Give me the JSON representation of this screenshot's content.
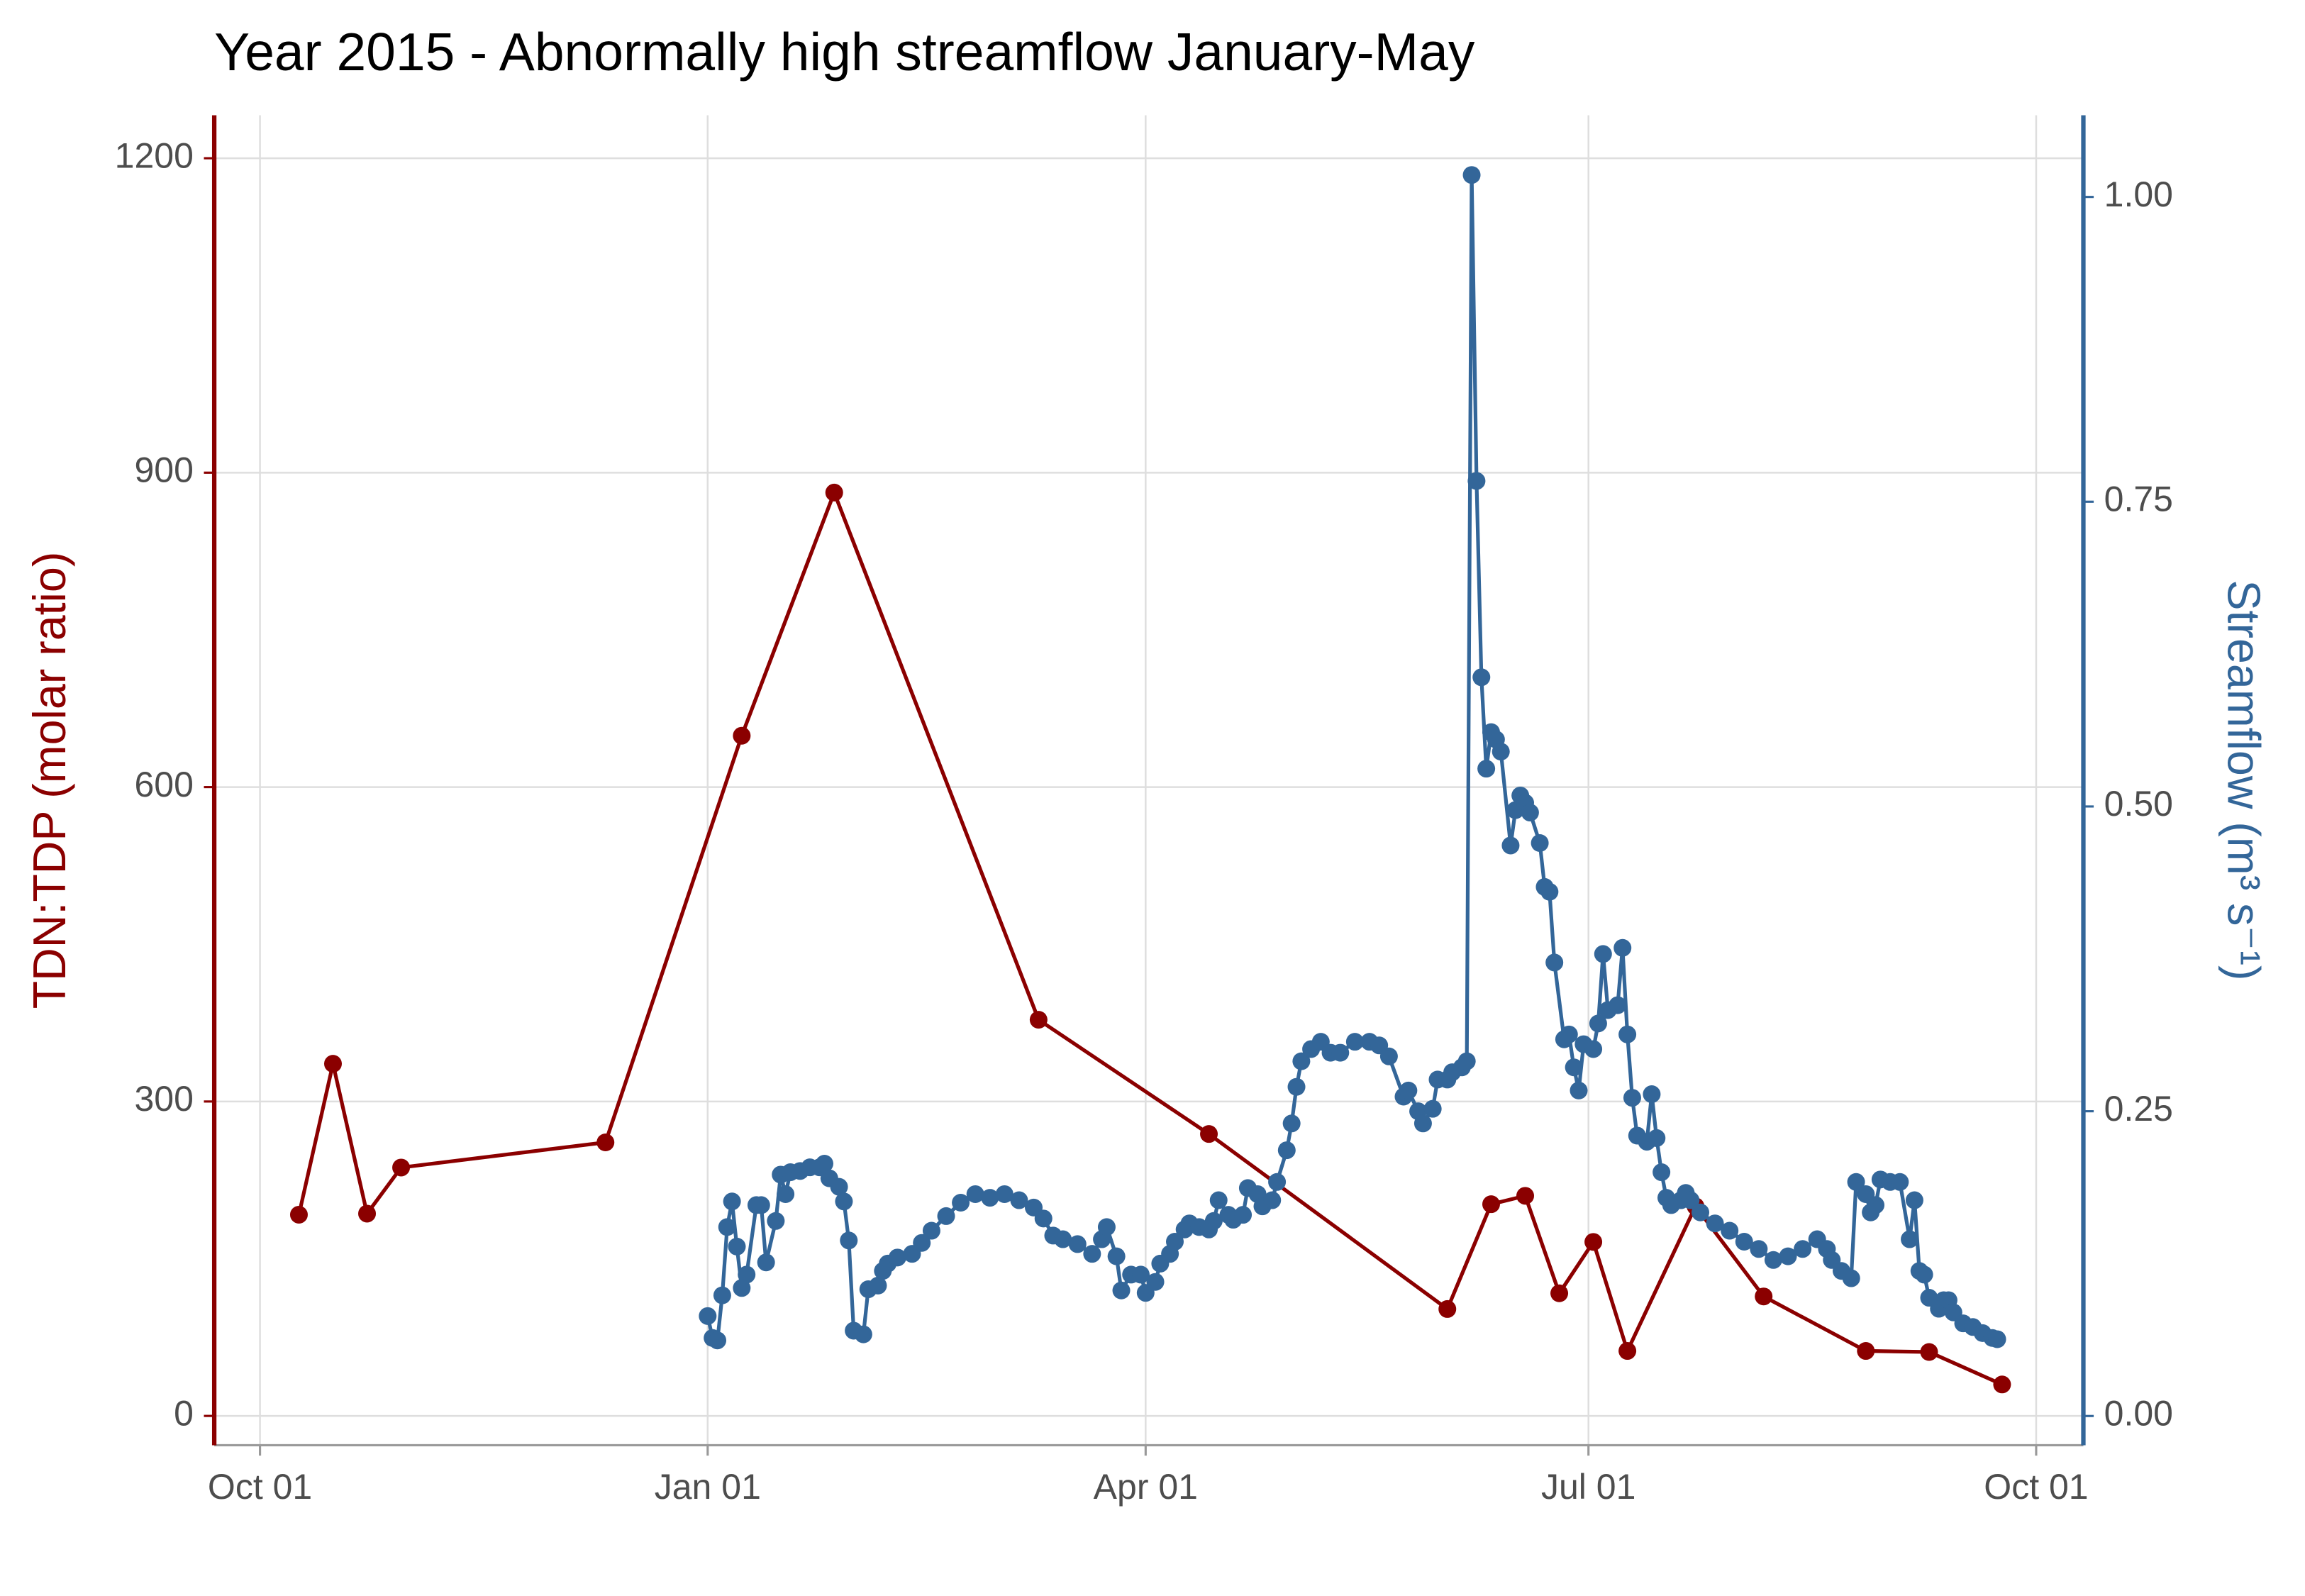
{
  "chart_data": {
    "type": "line",
    "title": "Year 2015 - Abnormally high streamflow January-May",
    "y_label": "TDN:TDP (molar ratio)",
    "y2_label": "Streamflow (m³ s⁻¹)",
    "xlim": [
      -9.4,
      374.7
    ],
    "xticks": [
      {
        "value": 0,
        "label": "Oct 01"
      },
      {
        "value": 92,
        "label": "Jan 01"
      },
      {
        "value": 182,
        "label": "Apr 01"
      },
      {
        "value": 273,
        "label": "Jul 01"
      },
      {
        "value": 365,
        "label": "Oct 01"
      }
    ],
    "ylim": [
      -28,
      1241
    ],
    "yticks": [
      0,
      300,
      600,
      900,
      1200
    ],
    "y2lim": [
      -0.024,
      1.067
    ],
    "y2ticks": [
      {
        "value": 0,
        "label": "0.00"
      },
      {
        "value": 0.25,
        "label": "0.25"
      },
      {
        "value": 0.5,
        "label": "0.50"
      },
      {
        "value": 0.75,
        "label": "0.75"
      },
      {
        "value": 1,
        "label": "1.00"
      }
    ],
    "grid": true,
    "series": [
      {
        "name": "TDN:TDP",
        "color": "#8b0000",
        "axis": "y",
        "x": [
          8,
          15,
          22,
          29,
          71,
          99,
          118,
          160,
          195,
          244,
          253,
          260,
          267,
          274,
          281,
          295,
          309,
          330,
          343,
          358
        ],
        "values": [
          192,
          336,
          193,
          237,
          261,
          649,
          881,
          378,
          269,
          102,
          202,
          210,
          117,
          166,
          62,
          200,
          114,
          62,
          61,
          30
        ]
      },
      {
        "name": "Streamflow",
        "color": "#336699",
        "axis": "y2",
        "x": [
          92,
          93,
          94,
          95,
          96,
          97,
          98,
          99,
          100,
          102,
          103,
          104,
          106,
          107,
          108,
          109,
          111,
          113,
          115,
          116,
          117,
          119,
          120,
          121,
          122,
          124,
          125,
          127,
          128,
          129,
          131,
          134,
          136,
          138,
          141,
          144,
          147,
          150,
          153,
          156,
          159,
          161,
          163,
          165,
          168,
          171,
          173,
          174,
          176,
          177,
          179,
          181,
          182,
          184,
          185,
          187,
          188,
          190,
          191,
          193,
          195,
          196,
          197,
          199,
          200,
          202,
          203,
          205,
          206,
          208,
          209,
          211,
          212,
          213,
          214,
          216,
          218,
          220,
          222,
          225,
          228,
          230,
          232,
          235,
          236,
          238,
          239,
          241,
          242,
          244,
          245,
          247,
          248,
          249,
          250,
          251,
          252,
          253,
          254,
          255,
          257,
          258,
          259,
          260,
          261,
          263,
          264,
          265,
          266,
          268,
          269,
          270,
          271,
          272,
          274,
          275,
          276,
          277,
          279,
          280,
          281,
          282,
          283,
          285,
          286,
          287,
          288,
          289,
          290,
          292,
          293,
          294,
          296,
          299,
          302,
          305,
          308,
          311,
          314,
          317,
          320,
          322,
          323,
          325,
          327,
          328,
          330,
          331,
          332,
          333,
          335,
          337,
          339,
          340,
          341,
          342,
          343,
          345,
          346,
          347,
          348,
          350,
          352,
          354,
          356,
          357
        ],
        "values": [
          0.082,
          0.064,
          0.062,
          0.099,
          0.155,
          0.176,
          0.139,
          0.105,
          0.116,
          0.173,
          0.173,
          0.126,
          0.16,
          0.198,
          0.182,
          0.2,
          0.201,
          0.204,
          0.204,
          0.207,
          0.195,
          0.188,
          0.176,
          0.144,
          0.07,
          0.067,
          0.104,
          0.107,
          0.119,
          0.125,
          0.13,
          0.133,
          0.142,
          0.152,
          0.164,
          0.175,
          0.182,
          0.179,
          0.182,
          0.177,
          0.171,
          0.162,
          0.148,
          0.145,
          0.141,
          0.133,
          0.145,
          0.155,
          0.131,
          0.103,
          0.116,
          0.116,
          0.101,
          0.11,
          0.125,
          0.133,
          0.143,
          0.153,
          0.158,
          0.155,
          0.153,
          0.16,
          0.177,
          0.165,
          0.161,
          0.165,
          0.187,
          0.182,
          0.172,
          0.177,
          0.192,
          0.218,
          0.24,
          0.27,
          0.291,
          0.301,
          0.307,
          0.298,
          0.298,
          0.307,
          0.307,
          0.304,
          0.295,
          0.262,
          0.267,
          0.25,
          0.24,
          0.252,
          0.276,
          0.276,
          0.282,
          0.286,
          0.291,
          1.018,
          0.767,
          0.606,
          0.531,
          0.561,
          0.555,
          0.545,
          0.468,
          0.497,
          0.509,
          0.503,
          0.495,
          0.47,
          0.434,
          0.43,
          0.372,
          0.309,
          0.313,
          0.286,
          0.267,
          0.305,
          0.301,
          0.322,
          0.379,
          0.333,
          0.337,
          0.384,
          0.313,
          0.261,
          0.23,
          0.225,
          0.264,
          0.228,
          0.2,
          0.179,
          0.173,
          0.177,
          0.183,
          0.177,
          0.167,
          0.158,
          0.152,
          0.143,
          0.137,
          0.128,
          0.131,
          0.137,
          0.145,
          0.137,
          0.128,
          0.119,
          0.113,
          0.192,
          0.182,
          0.167,
          0.173,
          0.194,
          0.192,
          0.192,
          0.145,
          0.177,
          0.119,
          0.116,
          0.097,
          0.088,
          0.095,
          0.095,
          0.085,
          0.076,
          0.073,
          0.068,
          0.064,
          0.063
        ]
      }
    ]
  }
}
